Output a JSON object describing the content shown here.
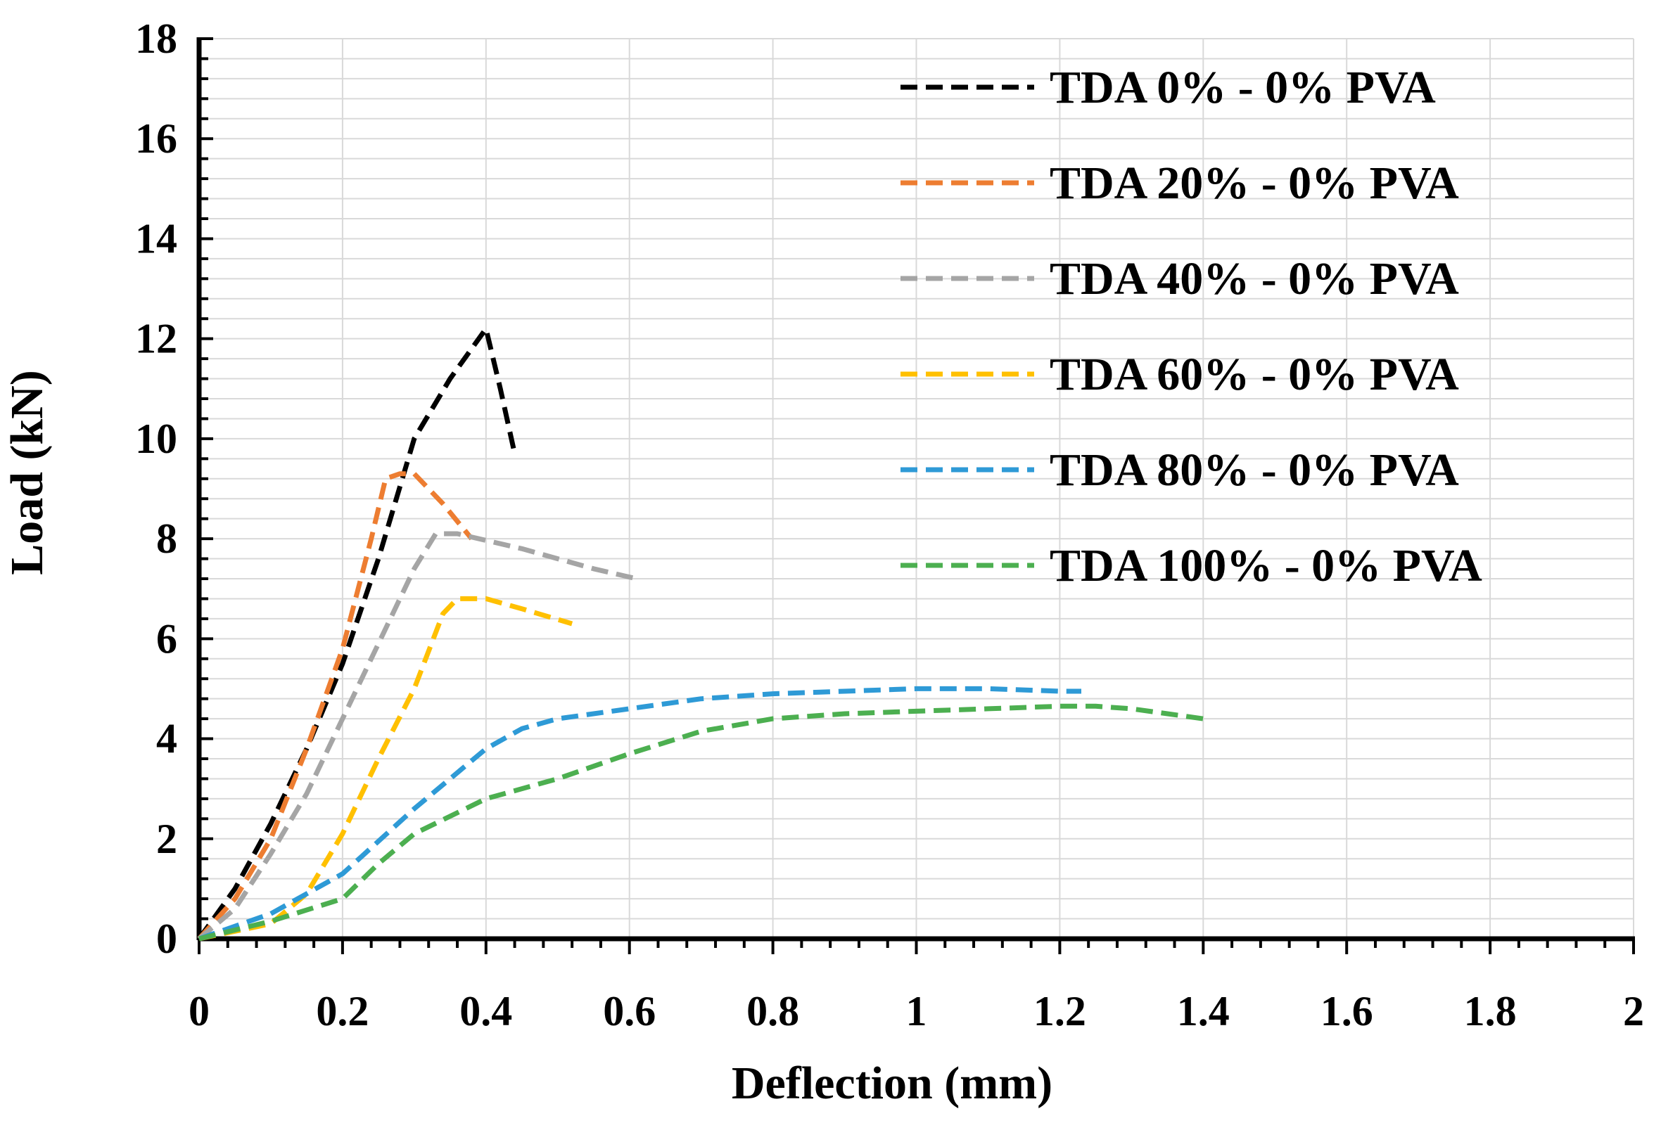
{
  "chart_data": {
    "type": "line",
    "title": "",
    "xlabel": "Deflection (mm)",
    "ylabel": "Load (kN)",
    "xlim": [
      0,
      2
    ],
    "ylim": [
      0,
      18
    ],
    "x_ticks": [
      "0",
      "0.2",
      "0.4",
      "0.6",
      "0.8",
      "1",
      "1.2",
      "1.4",
      "1.6",
      "1.8",
      "2"
    ],
    "y_ticks": [
      "0",
      "2",
      "4",
      "6",
      "8",
      "10",
      "12",
      "14",
      "16",
      "18"
    ],
    "grid": true,
    "legend_position": "top-right",
    "series": [
      {
        "name": "TDA 0% - 0% PVA",
        "color": "#000000",
        "points": [
          [
            0,
            0
          ],
          [
            0.05,
            1.0
          ],
          [
            0.1,
            2.3
          ],
          [
            0.15,
            3.8
          ],
          [
            0.2,
            5.5
          ],
          [
            0.25,
            7.6
          ],
          [
            0.3,
            10.0
          ],
          [
            0.35,
            11.2
          ],
          [
            0.38,
            11.8
          ],
          [
            0.4,
            12.2
          ],
          [
            0.42,
            11.0
          ],
          [
            0.44,
            9.7
          ]
        ]
      },
      {
        "name": "TDA 20% - 0% PVA",
        "color": "#ED7D31",
        "points": [
          [
            0,
            0
          ],
          [
            0.05,
            0.8
          ],
          [
            0.1,
            2.0
          ],
          [
            0.15,
            3.8
          ],
          [
            0.2,
            5.8
          ],
          [
            0.24,
            8.0
          ],
          [
            0.26,
            9.2
          ],
          [
            0.28,
            9.3
          ],
          [
            0.3,
            9.3
          ],
          [
            0.34,
            8.7
          ],
          [
            0.38,
            8.0
          ]
        ]
      },
      {
        "name": "TDA 40% - 0% PVA",
        "color": "#A5A5A5",
        "points": [
          [
            0,
            0
          ],
          [
            0.05,
            0.6
          ],
          [
            0.1,
            1.7
          ],
          [
            0.15,
            2.9
          ],
          [
            0.2,
            4.4
          ],
          [
            0.25,
            5.9
          ],
          [
            0.3,
            7.4
          ],
          [
            0.33,
            8.1
          ],
          [
            0.36,
            8.1
          ],
          [
            0.45,
            7.8
          ],
          [
            0.55,
            7.4
          ],
          [
            0.61,
            7.2
          ]
        ]
      },
      {
        "name": "TDA 60% - 0% PVA",
        "color": "#FFC000",
        "points": [
          [
            0,
            0
          ],
          [
            0.1,
            0.3
          ],
          [
            0.15,
            0.9
          ],
          [
            0.2,
            2.1
          ],
          [
            0.25,
            3.6
          ],
          [
            0.3,
            5.0
          ],
          [
            0.34,
            6.5
          ],
          [
            0.36,
            6.8
          ],
          [
            0.4,
            6.8
          ],
          [
            0.45,
            6.6
          ],
          [
            0.52,
            6.3
          ]
        ]
      },
      {
        "name": "TDA 80% - 0% PVA",
        "color": "#2E9AD6",
        "points": [
          [
            0,
            0
          ],
          [
            0.1,
            0.5
          ],
          [
            0.2,
            1.3
          ],
          [
            0.3,
            2.6
          ],
          [
            0.4,
            3.8
          ],
          [
            0.45,
            4.2
          ],
          [
            0.5,
            4.4
          ],
          [
            0.6,
            4.6
          ],
          [
            0.7,
            4.8
          ],
          [
            0.8,
            4.9
          ],
          [
            0.9,
            4.95
          ],
          [
            1.0,
            5.0
          ],
          [
            1.1,
            5.0
          ],
          [
            1.2,
            4.95
          ],
          [
            1.23,
            4.95
          ]
        ]
      },
      {
        "name": "TDA 100% - 0% PVA",
        "color": "#4CAF50",
        "points": [
          [
            0,
            0
          ],
          [
            0.1,
            0.35
          ],
          [
            0.2,
            0.8
          ],
          [
            0.25,
            1.5
          ],
          [
            0.3,
            2.1
          ],
          [
            0.4,
            2.8
          ],
          [
            0.5,
            3.2
          ],
          [
            0.6,
            3.7
          ],
          [
            0.7,
            4.15
          ],
          [
            0.8,
            4.4
          ],
          [
            0.9,
            4.5
          ],
          [
            1.0,
            4.55
          ],
          [
            1.1,
            4.6
          ],
          [
            1.2,
            4.65
          ],
          [
            1.25,
            4.65
          ],
          [
            1.3,
            4.6
          ],
          [
            1.4,
            4.4
          ]
        ]
      }
    ]
  }
}
